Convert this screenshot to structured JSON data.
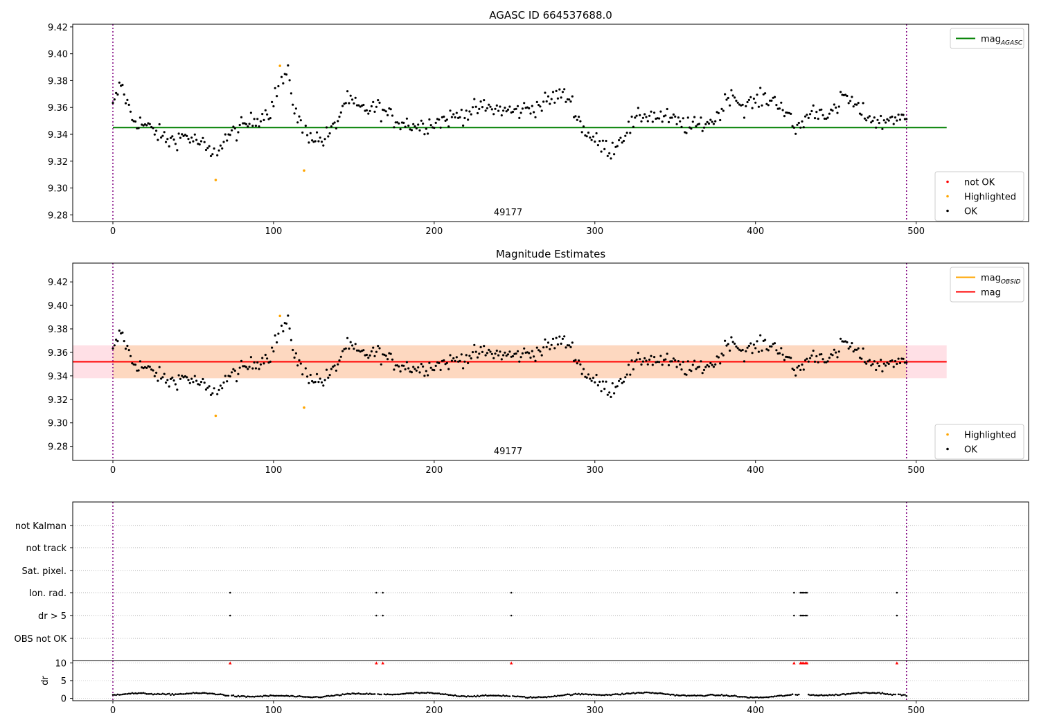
{
  "chart_data": [
    {
      "type": "scatter",
      "title": "AGASC ID 664537688.0",
      "xlim": [
        -25,
        570
      ],
      "ylim": [
        9.275,
        9.422
      ],
      "xticks": [
        0,
        100,
        200,
        300,
        400,
        500
      ],
      "yticks": [
        9.28,
        9.3,
        9.32,
        9.34,
        9.36,
        9.38,
        9.4,
        9.42
      ],
      "annotation": "49177",
      "vlines": [
        0,
        494
      ],
      "hline": {
        "name": "mag_AGASC",
        "y": 9.345,
        "x": [
          0,
          519
        ],
        "color": "#008000"
      },
      "colors": {
        "ok": "#000000",
        "highlighted": "#ffa500",
        "not_ok": "#ff0000"
      },
      "legend_top": {
        "position": "upper right",
        "entries": [
          {
            "label": "mag",
            "sub": "AGASC",
            "color": "#008000"
          }
        ]
      },
      "legend_bottom": {
        "position": "lower right",
        "entries": [
          {
            "label": "not OK",
            "color": "#ff0000"
          },
          {
            "label": "Highlighted",
            "color": "#ffa500"
          },
          {
            "label": "OK",
            "color": "#000000"
          }
        ]
      },
      "highlighted": [
        [
          64,
          9.306
        ],
        [
          104,
          9.391
        ],
        [
          119,
          9.313
        ]
      ]
    },
    {
      "type": "scatter",
      "title": "Magnitude Estimates",
      "xlim": [
        -25,
        570
      ],
      "ylim": [
        9.268,
        9.436
      ],
      "xticks": [
        0,
        100,
        200,
        300,
        400,
        500
      ],
      "yticks": [
        9.28,
        9.3,
        9.32,
        9.34,
        9.36,
        9.38,
        9.4,
        9.42
      ],
      "annotation": "49177",
      "vlines": [
        0,
        494
      ],
      "hline": {
        "name": "mag",
        "y": 9.352,
        "x": [
          -25,
          519
        ],
        "color": "#ff0000"
      },
      "bands": [
        {
          "name": "mag band",
          "y": [
            9.338,
            9.366
          ],
          "x": [
            -25,
            519
          ],
          "color": "#ffe0e6"
        },
        {
          "name": "mag_OBSID band",
          "y": [
            9.338,
            9.366
          ],
          "x": [
            0,
            494
          ],
          "color": "#fdd8c0"
        }
      ],
      "legend_top": {
        "position": "upper right",
        "entries": [
          {
            "label": "mag",
            "sub": "OBSID",
            "color": "#ffa500"
          },
          {
            "label": "mag",
            "sub": "",
            "color": "#ff0000"
          }
        ]
      },
      "legend_bottom": {
        "position": "lower right",
        "entries": [
          {
            "label": "Highlighted",
            "color": "#ffa500"
          },
          {
            "label": "OK",
            "color": "#000000"
          }
        ]
      },
      "highlighted": [
        [
          64,
          9.306
        ],
        [
          104,
          9.391
        ],
        [
          119,
          9.313
        ]
      ]
    },
    {
      "type": "scatter",
      "name": "flags",
      "xlim": [
        -25,
        570
      ],
      "xticks": [
        0,
        100,
        200,
        300,
        400,
        500
      ],
      "vlines": [
        0,
        494
      ],
      "rows": [
        "not Kalman",
        "not track",
        "Sat. pixel.",
        "Ion. rad.",
        "dr > 5",
        "OBS not OK"
      ],
      "flag_points": {
        "Ion. rad.": [
          73,
          164,
          168,
          248,
          424,
          428,
          429,
          430,
          431,
          432,
          488
        ],
        "dr > 5": [
          73,
          164,
          168,
          248,
          424,
          428,
          429,
          430,
          431,
          432,
          488
        ]
      }
    },
    {
      "type": "scatter",
      "name": "dr",
      "ylabel": "dr",
      "xlim": [
        -25,
        570
      ],
      "ylim": [
        -0.5,
        11
      ],
      "xticks": [
        0,
        100,
        200,
        300,
        400,
        500
      ],
      "yticks": [
        0,
        5,
        10
      ],
      "vlines": [
        0,
        494
      ],
      "clipped_markers": [
        73,
        164,
        168,
        248,
        424,
        428,
        429,
        430,
        431,
        432,
        488
      ],
      "clip_value": 10
    }
  ]
}
